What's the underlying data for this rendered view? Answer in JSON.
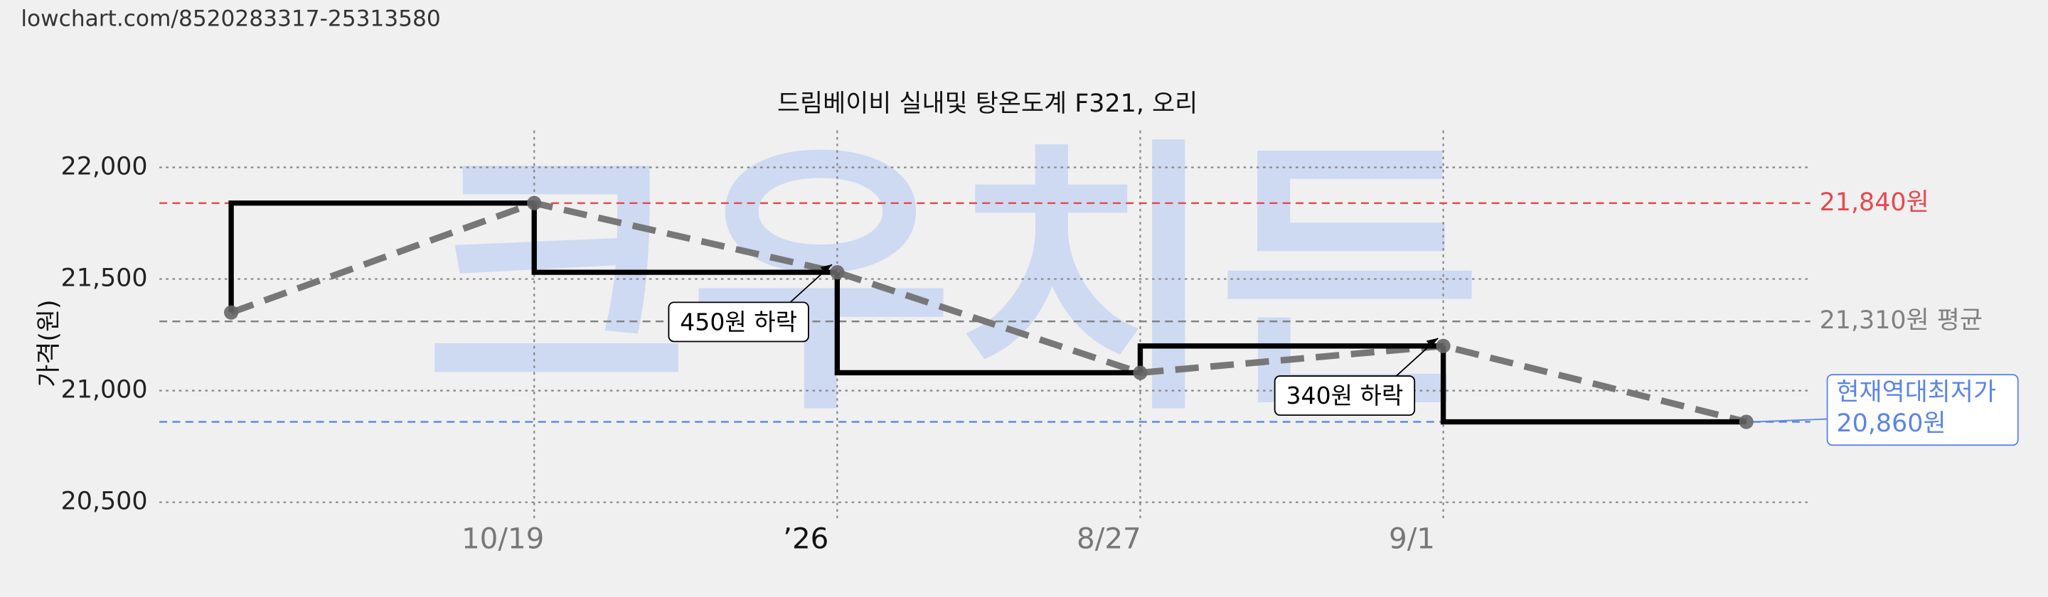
{
  "url": "lowchart.com/8520283317-25313580",
  "chart_data": {
    "type": "step-line",
    "title": "드림베이비 실내및 탕온도계 F321, 오리",
    "y_label": "가격(원)",
    "watermark": "크우치든",
    "categories": [
      null,
      "10/19",
      "’26",
      "8/27",
      "9/1",
      null
    ],
    "values": [
      21350,
      21840,
      21530,
      21080,
      21200,
      20860
    ],
    "color": "#000000",
    "trend_color": "#777777",
    "ylim": [
      20440,
      22165
    ],
    "yticks": [
      {
        "value": 20500,
        "label": "20,500"
      },
      {
        "value": 21000,
        "label": "21,000"
      },
      {
        "value": 21500,
        "label": "21,500"
      },
      {
        "value": 22000,
        "label": "22,000"
      }
    ],
    "grid": true,
    "reference_lines": [
      {
        "value": 21840,
        "label": "21,840원",
        "color": "#e8474f"
      },
      {
        "value": 21310,
        "label": "21,310원 평균",
        "color": "#808080"
      },
      {
        "value": 20860,
        "color": "#5b84e8"
      }
    ],
    "annotations": [
      {
        "text": "450원 하락",
        "index": 2
      },
      {
        "text": "340원 하락",
        "index": 4
      }
    ],
    "lowest_label": [
      "현재역대최저가",
      "20,860원"
    ]
  }
}
